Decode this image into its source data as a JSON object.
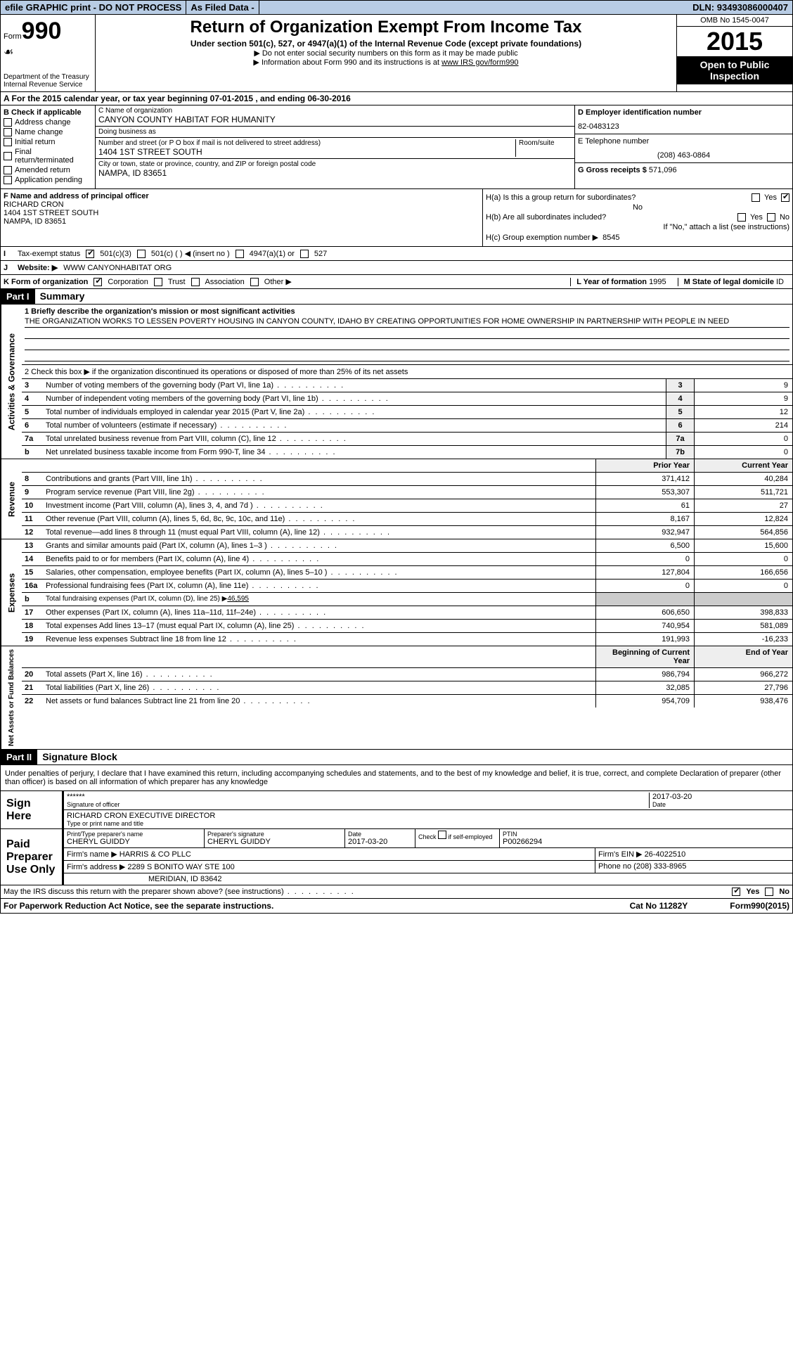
{
  "top": {
    "efile": "efile GRAPHIC print - DO NOT PROCESS",
    "asfiled": "As Filed Data -",
    "dln_lbl": "DLN:",
    "dln": "93493086000407"
  },
  "header": {
    "form": "Form",
    "num": "990",
    "dept": "Department of the Treasury",
    "irs": "Internal Revenue Service",
    "title": "Return of Organization Exempt From Income Tax",
    "sub": "Under section 501(c), 527, or 4947(a)(1) of the Internal Revenue Code (except private foundations)",
    "line1": "▶ Do not enter social security numbers on this form as it may be made public",
    "line2": "▶ Information about Form 990 and its instructions is at",
    "link": "www IRS gov/form990",
    "omb": "OMB No 1545-0047",
    "year": "2015",
    "open": "Open to Public Inspection"
  },
  "rowA": {
    "text": "A  For the 2015 calendar year, or tax year beginning 07-01-2015     , and ending 06-30-2016"
  },
  "B": {
    "hdr": "B  Check if applicable",
    "addr": "Address change",
    "name": "Name change",
    "init": "Initial return",
    "final": "Final return/terminated",
    "amend": "Amended return",
    "app": "Application pending"
  },
  "C": {
    "lbl": "C Name of organization",
    "org": "CANYON COUNTY HABITAT FOR HUMANITY",
    "dba_lbl": "Doing business as",
    "dba": "",
    "street_lbl": "Number and street (or P O box if mail is not delivered to street address)",
    "room_lbl": "Room/suite",
    "street": "1404 1ST STREET SOUTH",
    "city_lbl": "City or town, state or province, country, and ZIP or foreign postal code",
    "city": "NAMPA, ID 83651"
  },
  "D": {
    "lbl": "D Employer identification number",
    "val": "82-0483123"
  },
  "E": {
    "lbl": "E Telephone number",
    "val": "(208) 463-0864"
  },
  "G": {
    "lbl": "G Gross receipts $",
    "val": "571,096"
  },
  "F": {
    "lbl": "F  Name and address of principal officer",
    "name": "RICHARD CRON",
    "addr1": "1404 1ST STREET SOUTH",
    "addr2": "NAMPA, ID 83651"
  },
  "H": {
    "a": "H(a)  Is this a group return for subordinates?",
    "a_ans": "No",
    "yes": "Yes",
    "no": "No",
    "b": "H(b)  Are all subordinates included?",
    "b_note": "If \"No,\" attach a list (see instructions)",
    "c": "H(c)  Group exemption number ▶",
    "c_val": "8545"
  },
  "I": {
    "lbl": "Tax-exempt status",
    "501c3": "501(c)(3)",
    "501c": "501(c) (  ) ◀ (insert no )",
    "4947": "4947(a)(1) or",
    "527": "527"
  },
  "J": {
    "lbl": "Website: ▶",
    "val": "WWW CANYONHABITAT ORG"
  },
  "K": {
    "lbl": "K Form of organization",
    "corp": "Corporation",
    "trust": "Trust",
    "assoc": "Association",
    "other": "Other ▶"
  },
  "L": {
    "lbl": "L Year of formation",
    "val": "1995"
  },
  "M": {
    "lbl": "M State of legal domicile",
    "val": "ID"
  },
  "partI": {
    "hdr": "Part I",
    "title": "Summary"
  },
  "s1": {
    "lbl": "1 Briefly describe the organization's mission or most significant activities",
    "text": "THE ORGANIZATION WORKS TO LESSEN POVERTY HOUSING IN CANYON COUNTY, IDAHO BY CREATING OPPORTUNITIES FOR HOME OWNERSHIP IN PARTNERSHIP WITH PEOPLE IN NEED"
  },
  "s2": "2  Check this box ▶       if the organization discontinued its operations or disposed of more than 25% of its net assets",
  "gov": {
    "label": "Activities & Governance",
    "rows": [
      {
        "n": "3",
        "d": "Number of voting members of the governing body (Part VI, line 1a)",
        "b": "3",
        "v": "9"
      },
      {
        "n": "4",
        "d": "Number of independent voting members of the governing body (Part VI, line 1b)",
        "b": "4",
        "v": "9"
      },
      {
        "n": "5",
        "d": "Total number of individuals employed in calendar year 2015 (Part V, line 2a)",
        "b": "5",
        "v": "12"
      },
      {
        "n": "6",
        "d": "Total number of volunteers (estimate if necessary)",
        "b": "6",
        "v": "214"
      },
      {
        "n": "7a",
        "d": "Total unrelated business revenue from Part VIII, column (C), line 12",
        "b": "7a",
        "v": "0"
      },
      {
        "n": "b",
        "d": "Net unrelated business taxable income from Form 990-T, line 34",
        "b": "7b",
        "v": "0"
      }
    ]
  },
  "rev": {
    "label": "Revenue",
    "hdr_prior": "Prior Year",
    "hdr_curr": "Current Year",
    "rows": [
      {
        "n": "8",
        "d": "Contributions and grants (Part VIII, line 1h)",
        "p": "371,412",
        "c": "40,284"
      },
      {
        "n": "9",
        "d": "Program service revenue (Part VIII, line 2g)",
        "p": "553,307",
        "c": "511,721"
      },
      {
        "n": "10",
        "d": "Investment income (Part VIII, column (A), lines 3, 4, and 7d )",
        "p": "61",
        "c": "27"
      },
      {
        "n": "11",
        "d": "Other revenue (Part VIII, column (A), lines 5, 6d, 8c, 9c, 10c, and 11e)",
        "p": "8,167",
        "c": "12,824"
      },
      {
        "n": "12",
        "d": "Total revenue—add lines 8 through 11 (must equal Part VIII, column (A), line 12)",
        "p": "932,947",
        "c": "564,856"
      }
    ]
  },
  "exp": {
    "label": "Expenses",
    "fundraising": "46,595",
    "rows": [
      {
        "n": "13",
        "d": "Grants and similar amounts paid (Part IX, column (A), lines 1–3 )",
        "p": "6,500",
        "c": "15,600"
      },
      {
        "n": "14",
        "d": "Benefits paid to or for members (Part IX, column (A), line 4)",
        "p": "0",
        "c": "0"
      },
      {
        "n": "15",
        "d": "Salaries, other compensation, employee benefits (Part IX, column (A), lines 5–10 )",
        "p": "127,804",
        "c": "166,656"
      },
      {
        "n": "16a",
        "d": "Professional fundraising fees (Part IX, column (A), line 11e)",
        "p": "0",
        "c": "0"
      },
      {
        "n": "b",
        "d": "Total fundraising expenses (Part IX, column (D), line 25) ▶",
        "p": "",
        "c": "",
        "shade": true
      },
      {
        "n": "17",
        "d": "Other expenses (Part IX, column (A), lines 11a–11d, 11f–24e)",
        "p": "606,650",
        "c": "398,833"
      },
      {
        "n": "18",
        "d": "Total expenses Add lines 13–17 (must equal Part IX, column (A), line 25)",
        "p": "740,954",
        "c": "581,089"
      },
      {
        "n": "19",
        "d": "Revenue less expenses Subtract line 18 from line 12",
        "p": "191,993",
        "c": "-16,233"
      }
    ]
  },
  "net": {
    "label": "Net Assets or Fund Balances",
    "hdr_beg": "Beginning of Current Year",
    "hdr_end": "End of Year",
    "rows": [
      {
        "n": "20",
        "d": "Total assets (Part X, line 16)",
        "p": "986,794",
        "c": "966,272"
      },
      {
        "n": "21",
        "d": "Total liabilities (Part X, line 26)",
        "p": "32,085",
        "c": "27,796"
      },
      {
        "n": "22",
        "d": "Net assets or fund balances Subtract line 21 from line 20",
        "p": "954,709",
        "c": "938,476"
      }
    ]
  },
  "partII": {
    "hdr": "Part II",
    "title": "Signature Block"
  },
  "sig": {
    "decl": "Under penalties of perjury, I declare that I have examined this return, including accompanying schedules and statements, and to the best of my knowledge and belief, it is true, correct, and complete Declaration of preparer (other than officer) is based on all information of which preparer has any knowledge",
    "sign": "Sign Here",
    "stars": "******",
    "sig_lbl": "Signature of officer",
    "date_lbl": "Date",
    "date": "2017-03-20",
    "name": "RICHARD CRON EXECUTIVE DIRECTOR",
    "name_lbl": "Type or print name and title"
  },
  "prep": {
    "lbl": "Paid Preparer Use Only",
    "name_lbl": "Print/Type preparer's name",
    "name": "CHERYL GUIDDY",
    "sig_lbl": "Preparer's signature",
    "sig": "CHERYL GUIDDY",
    "date_lbl": "Date",
    "date": "2017-03-20",
    "chk": "Check       if self-employed",
    "ptin_lbl": "PTIN",
    "ptin": "P00266294",
    "firm_lbl": "Firm's name    ▶",
    "firm": "HARRIS & CO PLLC",
    "ein_lbl": "Firm's EIN ▶",
    "ein": "26-4022510",
    "addr_lbl": "Firm's address ▶",
    "addr1": "2289 S BONITO WAY STE 100",
    "addr2": "MERIDIAN, ID 83642",
    "phone_lbl": "Phone no",
    "phone": "(208) 333-8965"
  },
  "footer": {
    "discuss": "May the IRS discuss this return with the preparer shown above? (see instructions)",
    "yes": "Yes",
    "no": "No",
    "pra": "For Paperwork Reduction Act Notice, see the separate instructions.",
    "cat": "Cat No 11282Y",
    "form": "Form",
    "formnum": "990",
    "formyr": "(2015)"
  }
}
